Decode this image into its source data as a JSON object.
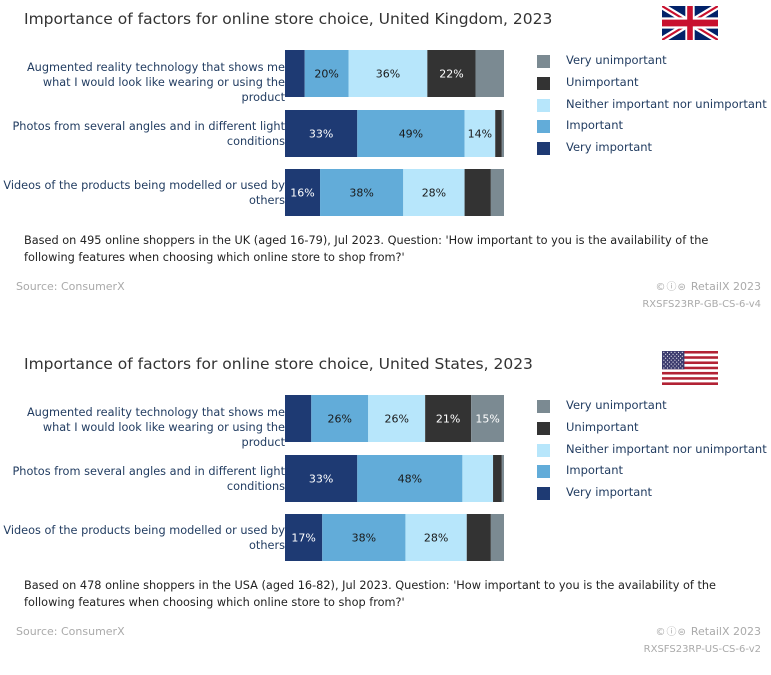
{
  "legend": [
    "Very unimportant",
    "Unimportant",
    "Neither important nor unimportant",
    "Important",
    "Very important"
  ],
  "legend_colors": [
    "#7b8a92",
    "#333333",
    "#b7e6fb",
    "#62acd9",
    "#1e3a73"
  ],
  "flag_icons": [
    "uk-flag-icon",
    "us-flag-icon"
  ],
  "panels": [
    {
      "title": "Importance of factors for online store choice, United Kingdom, 2023",
      "note": "Based on 495 online shoppers in the UK (aged 16-79), Jul 2023. Question: 'How important to you is the availability of the following features when choosing which online store to shop from?'",
      "source": "Source: ConsumerX",
      "cc": "©ⓘ⊜",
      "brand": "RetailX 2023",
      "code": "RXSFS23RP-GB-CS-6-v4"
    },
    {
      "title": "Importance of factors for online store choice, United States, 2023",
      "note": "Based on 478 online shoppers in the USA (aged 16-82), Jul 2023. Question: 'How important to you is the availability of the following features when choosing which online store to shop from?'",
      "source": "Source: ConsumerX",
      "cc": "©ⓘ⊜",
      "brand": "RetailX 2023",
      "code": "RXSFS23RP-US-CS-6-v2"
    }
  ],
  "chart_data": [
    {
      "type": "bar",
      "stacked": true,
      "orientation": "horizontal",
      "title": "Importance of factors for online store choice, United Kingdom, 2023",
      "categories": [
        "Augmented reality technology that shows me what I would look like wearing or using the product",
        "Photos from several angles and in different light conditions",
        "Videos of the products being modelled or used by others"
      ],
      "series": [
        {
          "name": "Very important",
          "values": [
            9,
            33,
            16
          ]
        },
        {
          "name": "Important",
          "values": [
            20,
            49,
            38
          ]
        },
        {
          "name": "Neither important nor unimportant",
          "values": [
            36,
            14,
            28
          ]
        },
        {
          "name": "Unimportant",
          "values": [
            22,
            3,
            12
          ]
        },
        {
          "name": "Very unimportant",
          "values": [
            13,
            1,
            6
          ]
        }
      ],
      "data_labels": [
        [
          "",
          "20%",
          "36%",
          "22%",
          ""
        ],
        [
          "33%",
          "49%",
          "14%",
          "",
          ""
        ],
        [
          "16%",
          "38%",
          "28%",
          "",
          ""
        ]
      ],
      "xlim": [
        0,
        100
      ],
      "legend_position": "right"
    },
    {
      "type": "bar",
      "stacked": true,
      "orientation": "horizontal",
      "title": "Importance of factors for online store choice, United States, 2023",
      "categories": [
        "Augmented reality technology that shows me what I would look like wearing or using the product",
        "Photos from several angles and in different light conditions",
        "Videos of the products being modelled or used by others"
      ],
      "series": [
        {
          "name": "Very important",
          "values": [
            12,
            33,
            17
          ]
        },
        {
          "name": "Important",
          "values": [
            26,
            48,
            38
          ]
        },
        {
          "name": "Neither important nor unimportant",
          "values": [
            26,
            14,
            28
          ]
        },
        {
          "name": "Unimportant",
          "values": [
            21,
            4,
            11
          ]
        },
        {
          "name": "Very unimportant",
          "values": [
            15,
            1,
            6
          ]
        }
      ],
      "data_labels": [
        [
          "",
          "26%",
          "26%",
          "21%",
          "15%"
        ],
        [
          "33%",
          "48%",
          "",
          "",
          ""
        ],
        [
          "17%",
          "38%",
          "28%",
          "",
          ""
        ]
      ],
      "xlim": [
        0,
        100
      ],
      "legend_position": "right"
    }
  ]
}
